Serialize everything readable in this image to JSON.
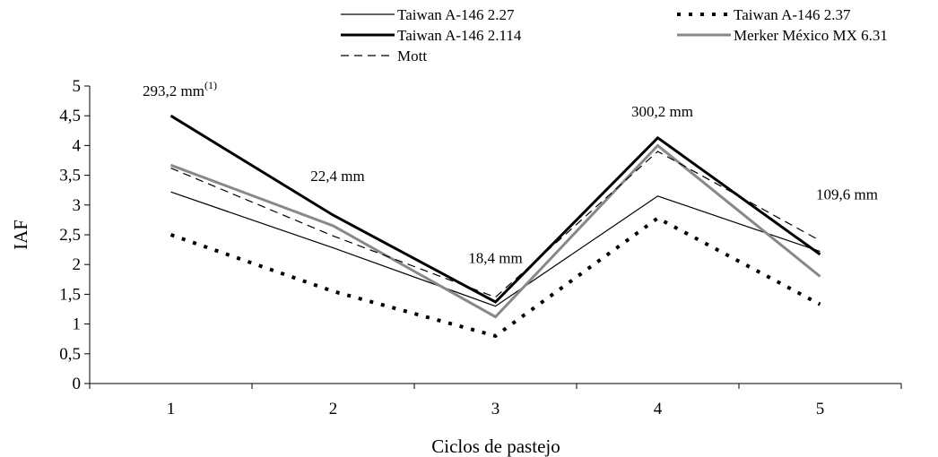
{
  "chart_data": {
    "type": "line",
    "xlabel": "Ciclos de pastejo",
    "ylabel": "IAF",
    "categories": [
      "1",
      "2",
      "3",
      "4",
      "5"
    ],
    "ylim": [
      0,
      5
    ],
    "yticks": [
      "0",
      "0,5",
      "1",
      "1,5",
      "2",
      "2,5",
      "3",
      "3,5",
      "4",
      "4,5",
      "5"
    ],
    "grid": false,
    "legend_position": "top",
    "series": [
      {
        "name": "Taiwan A-146 2.27",
        "values": [
          3.22,
          2.28,
          1.3,
          3.15,
          2.22
        ],
        "color": "#000000",
        "style": "thin-solid"
      },
      {
        "name": "Taiwan A-146 2.37",
        "values": [
          2.5,
          1.55,
          0.8,
          2.78,
          1.33
        ],
        "color": "#000000",
        "style": "dotted"
      },
      {
        "name": "Taiwan A-146 2.114",
        "values": [
          4.5,
          2.83,
          1.37,
          4.13,
          2.17
        ],
        "color": "#000000",
        "style": "thick-solid"
      },
      {
        "name": "Merker México MX 6.31",
        "values": [
          3.67,
          2.65,
          1.12,
          4.0,
          1.8
        ],
        "color": "#888888",
        "style": "gray-solid"
      },
      {
        "name": "Mott",
        "values": [
          3.62,
          2.48,
          1.45,
          3.9,
          2.4
        ],
        "color": "#000000",
        "style": "dashed"
      }
    ],
    "annotations": [
      {
        "category": "1",
        "text": "293,2 mm",
        "superscript": "(1)"
      },
      {
        "category": "2",
        "text": "22,4 mm",
        "superscript": ""
      },
      {
        "category": "3",
        "text": "18,4 mm",
        "superscript": ""
      },
      {
        "category": "4",
        "text": "300,2 mm",
        "superscript": ""
      },
      {
        "category": "5",
        "text": "109,6 mm",
        "superscript": ""
      }
    ]
  }
}
